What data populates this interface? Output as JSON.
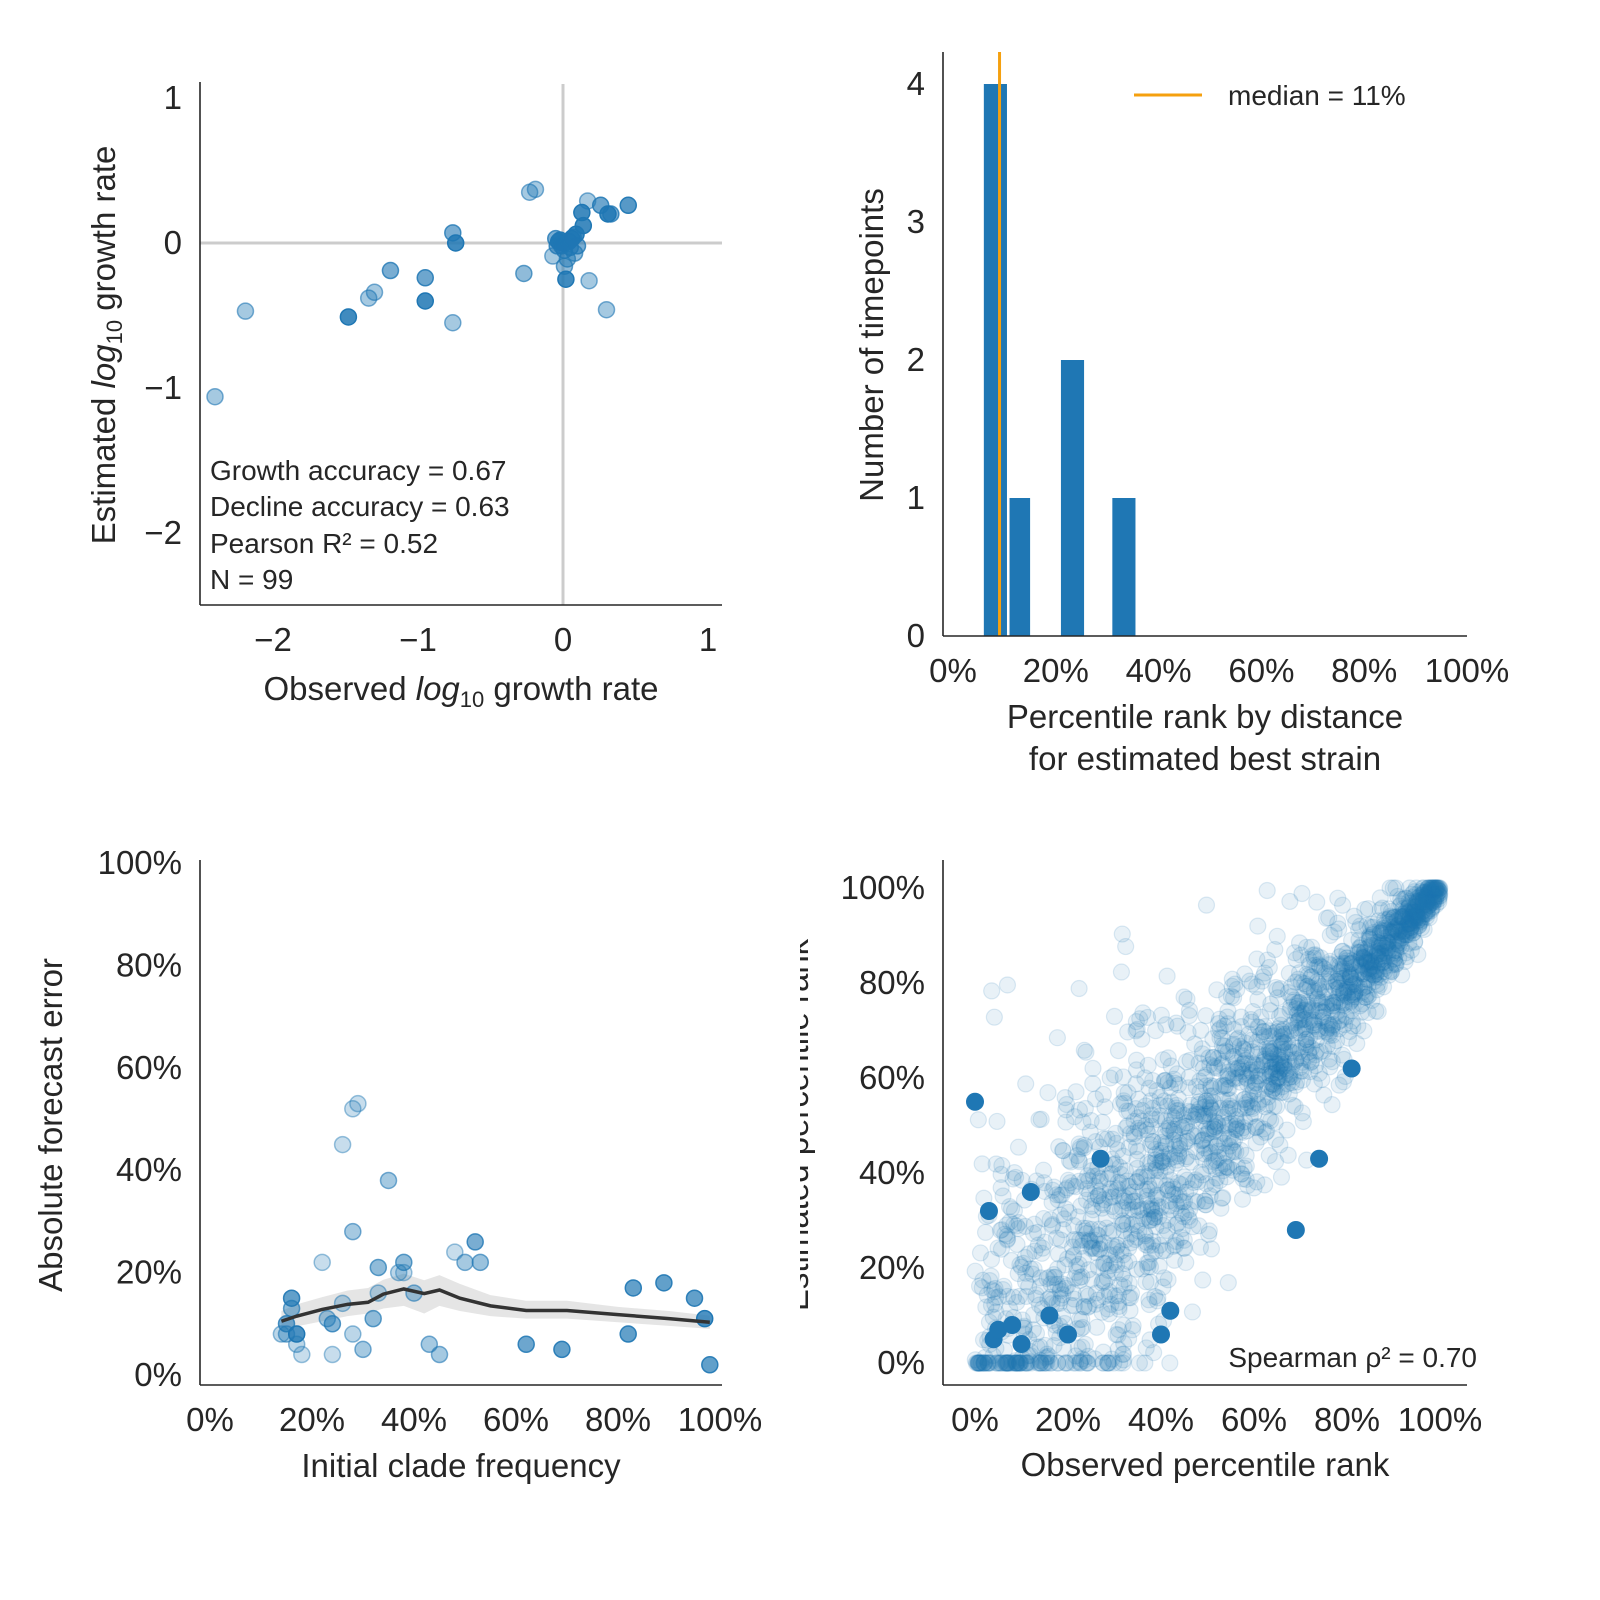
{
  "colors": {
    "point": "#1f77b4",
    "median": "#f5a00f",
    "trend": "#333333",
    "band": "#bdbdbd",
    "refline": "#cccccc",
    "axis": "#262626"
  },
  "chart_data": [
    {
      "id": "growth",
      "type": "scatter",
      "xlabel_pre": "Observed ",
      "xlabel_log": "log",
      "xlabel_sub": "10",
      "xlabel_post": " growth rate",
      "ylabel_pre": "Estimated ",
      "ylabel_log": "log",
      "ylabel_sub": "10",
      "ylabel_post": " growth rate",
      "xlim": [
        -2.5,
        1.1
      ],
      "ylim": [
        -2.45,
        1.1
      ],
      "xticks": [
        -2,
        -1,
        0,
        1
      ],
      "xtick_labels": [
        "−2",
        "−1",
        "0",
        "1"
      ],
      "yticks": [
        -2,
        -1,
        0,
        1
      ],
      "ytick_labels": [
        "−2",
        "−1",
        "0",
        "1"
      ],
      "reference_lines": {
        "x": 0,
        "y": 0
      },
      "annotations": [
        "Growth accuracy = 0.67",
        "Decline accuracy = 0.63",
        "Pearson R² = 0.52",
        "N = 99"
      ],
      "points": [
        {
          "x": -2.4,
          "y": -1.06,
          "a": 0.4
        },
        {
          "x": -2.19,
          "y": -0.47,
          "a": 0.4
        },
        {
          "x": -1.48,
          "y": -0.51,
          "a": 0.85
        },
        {
          "x": -1.34,
          "y": -0.38,
          "a": 0.4
        },
        {
          "x": -1.3,
          "y": -0.34,
          "a": 0.4
        },
        {
          "x": -1.19,
          "y": -0.19,
          "a": 0.6
        },
        {
          "x": -0.95,
          "y": -0.24,
          "a": 0.65
        },
        {
          "x": -0.95,
          "y": -0.4,
          "a": 0.85
        },
        {
          "x": -0.76,
          "y": -0.55,
          "a": 0.4
        },
        {
          "x": -0.76,
          "y": 0.07,
          "a": 0.6
        },
        {
          "x": -0.74,
          "y": 0.0,
          "a": 0.85
        },
        {
          "x": -0.27,
          "y": -0.21,
          "a": 0.5
        },
        {
          "x": -0.23,
          "y": 0.35,
          "a": 0.4
        },
        {
          "x": -0.19,
          "y": 0.37,
          "a": 0.4
        },
        {
          "x": -0.07,
          "y": -0.09,
          "a": 0.4
        },
        {
          "x": -0.05,
          "y": 0.03,
          "a": 0.6
        },
        {
          "x": -0.04,
          "y": -0.02,
          "a": 0.6
        },
        {
          "x": -0.03,
          "y": 0.01,
          "a": 0.85
        },
        {
          "x": -0.02,
          "y": 0.02,
          "a": 0.85
        },
        {
          "x": -0.01,
          "y": -0.02,
          "a": 0.6
        },
        {
          "x": 0.0,
          "y": 0.0,
          "a": 0.85
        },
        {
          "x": 0.01,
          "y": -0.05,
          "a": 0.6
        },
        {
          "x": 0.01,
          "y": -0.16,
          "a": 0.5
        },
        {
          "x": 0.02,
          "y": -0.25,
          "a": 0.85
        },
        {
          "x": 0.03,
          "y": -0.11,
          "a": 0.5
        },
        {
          "x": 0.04,
          "y": 0.01,
          "a": 0.85
        },
        {
          "x": 0.05,
          "y": -0.03,
          "a": 0.6
        },
        {
          "x": 0.06,
          "y": 0.03,
          "a": 0.85
        },
        {
          "x": 0.07,
          "y": 0.04,
          "a": 0.6
        },
        {
          "x": 0.08,
          "y": -0.07,
          "a": 0.5
        },
        {
          "x": 0.09,
          "y": 0.06,
          "a": 0.85
        },
        {
          "x": 0.1,
          "y": -0.02,
          "a": 0.6
        },
        {
          "x": 0.13,
          "y": 0.21,
          "a": 0.85
        },
        {
          "x": 0.14,
          "y": 0.12,
          "a": 0.85
        },
        {
          "x": 0.17,
          "y": 0.29,
          "a": 0.4
        },
        {
          "x": 0.18,
          "y": -0.26,
          "a": 0.4
        },
        {
          "x": 0.26,
          "y": 0.26,
          "a": 0.65
        },
        {
          "x": 0.3,
          "y": -0.46,
          "a": 0.4
        },
        {
          "x": 0.31,
          "y": 0.2,
          "a": 0.85
        },
        {
          "x": 0.33,
          "y": 0.2,
          "a": 0.6
        },
        {
          "x": 0.45,
          "y": 0.26,
          "a": 0.75
        }
      ]
    },
    {
      "id": "hist",
      "type": "bar",
      "xlabel_lines": [
        "Percentile rank by distance",
        "for estimated best strain"
      ],
      "ylabel": "Number of timepoints",
      "xlim": [
        0,
        100
      ],
      "ylim": [
        0,
        4.2
      ],
      "xticks": [
        0,
        20,
        40,
        60,
        80,
        100
      ],
      "xtick_labels": [
        "0%",
        "20%",
        "40%",
        "60%",
        "80%",
        "100%"
      ],
      "yticks": [
        0,
        1,
        2,
        3,
        4
      ],
      "ytick_labels": [
        "0",
        "1",
        "2",
        "3",
        "4"
      ],
      "bars": [
        {
          "x0": 6,
          "x1": 10.5,
          "value": 4
        },
        {
          "x0": 11,
          "x1": 15,
          "value": 1
        },
        {
          "x0": 21,
          "x1": 25.5,
          "value": 2
        },
        {
          "x0": 31,
          "x1": 35.5,
          "value": 1
        }
      ],
      "median": 11,
      "legend_label": "median = 11%",
      "legend_position": "top-right"
    },
    {
      "id": "error",
      "type": "scatter",
      "xlabel": "Initial clade frequency",
      "ylabel": "Absolute forecast error",
      "xlim": [
        0,
        100
      ],
      "ylim": [
        0,
        103
      ],
      "xticks": [
        0,
        20,
        40,
        60,
        80,
        100
      ],
      "xtick_labels": [
        "0%",
        "20%",
        "40%",
        "60%",
        "80%",
        "100%"
      ],
      "yticks": [
        0,
        20,
        40,
        60,
        80,
        100
      ],
      "ytick_labels": [
        "0%",
        "20%",
        "40%",
        "60%",
        "80%",
        "100%"
      ],
      "points": [
        {
          "x": 15,
          "y": 10,
          "a": 0.6
        },
        {
          "x": 15,
          "y": 8,
          "a": 0.4
        },
        {
          "x": 16,
          "y": 15,
          "a": 0.7
        },
        {
          "x": 16,
          "y": 13,
          "a": 0.5
        },
        {
          "x": 17,
          "y": 8,
          "a": 0.8
        },
        {
          "x": 17,
          "y": 6,
          "a": 0.3
        },
        {
          "x": 18,
          "y": 4,
          "a": 0.25
        },
        {
          "x": 14,
          "y": 8,
          "a": 0.3
        },
        {
          "x": 22,
          "y": 22,
          "a": 0.25
        },
        {
          "x": 23,
          "y": 11,
          "a": 0.4
        },
        {
          "x": 24,
          "y": 10,
          "a": 0.55
        },
        {
          "x": 24,
          "y": 4,
          "a": 0.25
        },
        {
          "x": 26,
          "y": 14,
          "a": 0.3
        },
        {
          "x": 26,
          "y": 45,
          "a": 0.25
        },
        {
          "x": 28,
          "y": 28,
          "a": 0.4
        },
        {
          "x": 28,
          "y": 52,
          "a": 0.25
        },
        {
          "x": 29,
          "y": 53,
          "a": 0.25
        },
        {
          "x": 28,
          "y": 8,
          "a": 0.3
        },
        {
          "x": 30,
          "y": 5,
          "a": 0.4
        },
        {
          "x": 32,
          "y": 11,
          "a": 0.5
        },
        {
          "x": 33,
          "y": 16,
          "a": 0.3
        },
        {
          "x": 33,
          "y": 21,
          "a": 0.5
        },
        {
          "x": 35,
          "y": 38,
          "a": 0.4
        },
        {
          "x": 37,
          "y": 20,
          "a": 0.3
        },
        {
          "x": 38,
          "y": 22,
          "a": 0.5
        },
        {
          "x": 38,
          "y": 20,
          "a": 0.25
        },
        {
          "x": 40,
          "y": 16,
          "a": 0.4
        },
        {
          "x": 43,
          "y": 6,
          "a": 0.4
        },
        {
          "x": 45,
          "y": 4,
          "a": 0.4
        },
        {
          "x": 48,
          "y": 24,
          "a": 0.25
        },
        {
          "x": 50,
          "y": 22,
          "a": 0.4
        },
        {
          "x": 52,
          "y": 26,
          "a": 0.6
        },
        {
          "x": 53,
          "y": 22,
          "a": 0.45
        },
        {
          "x": 62,
          "y": 6,
          "a": 0.65
        },
        {
          "x": 69,
          "y": 5,
          "a": 0.7
        },
        {
          "x": 82,
          "y": 8,
          "a": 0.7
        },
        {
          "x": 83,
          "y": 17,
          "a": 0.7
        },
        {
          "x": 89,
          "y": 18,
          "a": 0.7
        },
        {
          "x": 95,
          "y": 15,
          "a": 0.7
        },
        {
          "x": 97,
          "y": 11,
          "a": 0.8
        },
        {
          "x": 98,
          "y": 2,
          "a": 0.7
        }
      ],
      "trend": [
        {
          "x": 14,
          "y": 10.5,
          "lo": 8.5,
          "hi": 12.5
        },
        {
          "x": 17,
          "y": 11.5,
          "lo": 9.5,
          "hi": 13.8
        },
        {
          "x": 22,
          "y": 12.8,
          "lo": 10.5,
          "hi": 15.2
        },
        {
          "x": 27,
          "y": 13.8,
          "lo": 11.5,
          "hi": 16.5
        },
        {
          "x": 31,
          "y": 14.2,
          "lo": 12,
          "hi": 17
        },
        {
          "x": 34,
          "y": 15.8,
          "lo": 13,
          "hi": 18.6
        },
        {
          "x": 38,
          "y": 16.8,
          "lo": 13.5,
          "hi": 19.8
        },
        {
          "x": 42,
          "y": 15.9,
          "lo": 12,
          "hi": 18.5
        },
        {
          "x": 45,
          "y": 16.6,
          "lo": 13.5,
          "hi": 19.5
        },
        {
          "x": 49,
          "y": 15,
          "lo": 12.5,
          "hi": 17.8
        },
        {
          "x": 55,
          "y": 13.5,
          "lo": 11.5,
          "hi": 15.6
        },
        {
          "x": 62,
          "y": 12.6,
          "lo": 11,
          "hi": 14.5
        },
        {
          "x": 70,
          "y": 12.6,
          "lo": 11,
          "hi": 14.5
        },
        {
          "x": 80,
          "y": 11.8,
          "lo": 10.3,
          "hi": 13.3
        },
        {
          "x": 90,
          "y": 11,
          "lo": 9.6,
          "hi": 12.5
        },
        {
          "x": 98,
          "y": 10.3,
          "lo": 9,
          "hi": 11.6
        }
      ]
    },
    {
      "id": "ranks",
      "type": "scatter",
      "xlabel": "Observed percentile rank",
      "ylabel": "Estimated percentile rank",
      "xlim": [
        -8,
        107
      ],
      "ylim": [
        -5,
        106
      ],
      "xticks": [
        0,
        20,
        40,
        60,
        80,
        100
      ],
      "xtick_labels": [
        "0%",
        "20%",
        "40%",
        "60%",
        "80%",
        "100%"
      ],
      "yticks": [
        0,
        20,
        40,
        60,
        80,
        100
      ],
      "ytick_labels": [
        "0%",
        "20%",
        "40%",
        "60%",
        "80%",
        "100%"
      ],
      "annotation": "Spearman ρ² = 0.70",
      "n_background_points": 2000,
      "highlighted_points": [
        {
          "x": 0,
          "y": 55
        },
        {
          "x": 3,
          "y": 32
        },
        {
          "x": 4,
          "y": 5
        },
        {
          "x": 5,
          "y": 7
        },
        {
          "x": 8,
          "y": 8
        },
        {
          "x": 10,
          "y": 4
        },
        {
          "x": 12,
          "y": 36
        },
        {
          "x": 16,
          "y": 10
        },
        {
          "x": 20,
          "y": 6
        },
        {
          "x": 27,
          "y": 43
        },
        {
          "x": 40,
          "y": 6
        },
        {
          "x": 42,
          "y": 11
        },
        {
          "x": 69,
          "y": 28
        },
        {
          "x": 74,
          "y": 43
        },
        {
          "x": 81,
          "y": 62
        }
      ]
    }
  ]
}
